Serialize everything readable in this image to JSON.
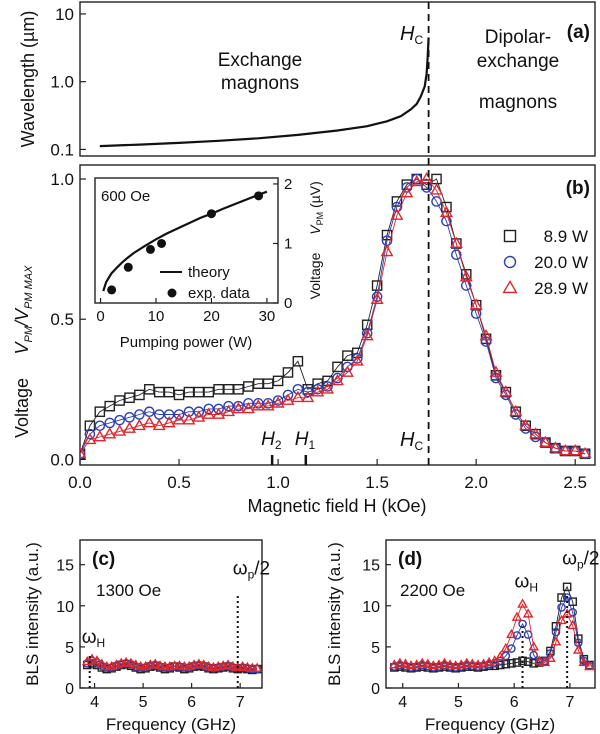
{
  "chart_data": [
    {
      "id": "a",
      "type": "line",
      "panel_label": "(a)",
      "ylabel": "Wavelength (µm)",
      "yscale": "log",
      "xlim": [
        0,
        2.6
      ],
      "ylim": [
        0.08,
        15
      ],
      "yticks": [
        {
          "v": 0.1,
          "label": "0.1"
        },
        {
          "v": 1,
          "label": "1.0"
        },
        {
          "v": 10,
          "label": "10"
        }
      ],
      "region_labels": [
        [
          "Exchange",
          "magnons"
        ],
        [
          "Dipolar-",
          "exchange",
          "magnons"
        ]
      ],
      "hc_label": "H",
      "hc_sub": "C",
      "hc_value": 1.76,
      "series": [
        {
          "x": [
            0.1,
            0.3,
            0.5,
            0.7,
            0.9,
            1.1,
            1.3,
            1.45,
            1.55,
            1.62,
            1.67,
            1.7,
            1.72,
            1.74,
            1.75,
            1.755,
            1.76
          ],
          "y": [
            0.112,
            0.118,
            0.125,
            0.134,
            0.146,
            0.164,
            0.19,
            0.22,
            0.26,
            0.31,
            0.39,
            0.47,
            0.6,
            0.85,
            1.3,
            2.2,
            4.5
          ]
        }
      ]
    },
    {
      "id": "b",
      "type": "scatter",
      "panel_label": "(b)",
      "ylabel_prefix": "Voltage",
      "ylabel_math": "V_PM/V_PM MAX",
      "xlabel": "Magnetic field H (kOe)",
      "xlim": [
        0,
        2.6
      ],
      "ylim": [
        -0.02,
        1.05
      ],
      "xticks": [
        "0.0",
        "0.5",
        "1.0",
        "1.5",
        "2.0",
        "2.5"
      ],
      "yticks": [
        "0.0",
        "0.5",
        "1.0"
      ],
      "field_markers": [
        {
          "x": 0.97,
          "label": "H",
          "sub": "2"
        },
        {
          "x": 1.14,
          "label": "H",
          "sub": "1"
        }
      ],
      "hc_label": "H",
      "hc_sub": "C",
      "series": [
        {
          "name": "8.9 W",
          "marker": "square",
          "color": "#222222",
          "x": [
            0.0,
            0.05,
            0.1,
            0.15,
            0.2,
            0.25,
            0.3,
            0.35,
            0.4,
            0.45,
            0.5,
            0.55,
            0.6,
            0.65,
            0.7,
            0.75,
            0.8,
            0.85,
            0.9,
            0.95,
            1.0,
            1.05,
            1.1,
            1.15,
            1.2,
            1.25,
            1.3,
            1.35,
            1.4,
            1.45,
            1.5,
            1.55,
            1.6,
            1.65,
            1.7,
            1.75,
            1.8,
            1.85,
            1.9,
            1.95,
            2.0,
            2.05,
            2.1,
            2.15,
            2.2,
            2.25,
            2.3,
            2.35,
            2.4,
            2.45,
            2.5,
            2.55
          ],
          "y": [
            0.02,
            0.12,
            0.17,
            0.19,
            0.21,
            0.22,
            0.23,
            0.25,
            0.24,
            0.24,
            0.23,
            0.24,
            0.24,
            0.24,
            0.25,
            0.25,
            0.25,
            0.26,
            0.27,
            0.27,
            0.28,
            0.31,
            0.35,
            0.25,
            0.27,
            0.28,
            0.33,
            0.37,
            0.38,
            0.48,
            0.62,
            0.8,
            0.92,
            0.98,
            1.0,
            0.98,
            1.0,
            0.9,
            0.77,
            0.66,
            0.55,
            0.43,
            0.3,
            0.24,
            0.17,
            0.12,
            0.09,
            0.06,
            0.04,
            0.03,
            0.03,
            0.02
          ]
        },
        {
          "name": "20.0 W",
          "marker": "circle",
          "color": "#2b3fb5",
          "x": [
            0.0,
            0.05,
            0.1,
            0.15,
            0.2,
            0.25,
            0.3,
            0.35,
            0.4,
            0.45,
            0.5,
            0.55,
            0.6,
            0.65,
            0.7,
            0.75,
            0.8,
            0.85,
            0.9,
            0.95,
            1.0,
            1.05,
            1.1,
            1.15,
            1.2,
            1.25,
            1.3,
            1.35,
            1.4,
            1.45,
            1.5,
            1.55,
            1.6,
            1.65,
            1.7,
            1.75,
            1.8,
            1.85,
            1.9,
            1.95,
            2.0,
            2.05,
            2.1,
            2.15,
            2.2,
            2.25,
            2.3,
            2.35,
            2.4,
            2.45,
            2.5,
            2.55
          ],
          "y": [
            0.02,
            0.09,
            0.12,
            0.13,
            0.14,
            0.15,
            0.16,
            0.17,
            0.16,
            0.16,
            0.16,
            0.17,
            0.17,
            0.18,
            0.18,
            0.19,
            0.19,
            0.2,
            0.2,
            0.2,
            0.21,
            0.23,
            0.25,
            0.24,
            0.25,
            0.26,
            0.29,
            0.33,
            0.36,
            0.45,
            0.58,
            0.78,
            0.9,
            0.97,
            1.0,
            0.97,
            0.92,
            0.85,
            0.73,
            0.62,
            0.52,
            0.42,
            0.29,
            0.23,
            0.16,
            0.11,
            0.08,
            0.06,
            0.04,
            0.03,
            0.03,
            0.02
          ]
        },
        {
          "name": "28.9 W",
          "marker": "triangle",
          "color": "#e0262c",
          "x": [
            0.0,
            0.05,
            0.1,
            0.15,
            0.2,
            0.25,
            0.3,
            0.35,
            0.4,
            0.45,
            0.5,
            0.55,
            0.6,
            0.65,
            0.7,
            0.75,
            0.8,
            0.85,
            0.9,
            0.95,
            1.0,
            1.05,
            1.1,
            1.15,
            1.2,
            1.25,
            1.3,
            1.35,
            1.4,
            1.45,
            1.5,
            1.55,
            1.6,
            1.65,
            1.7,
            1.75,
            1.8,
            1.85,
            1.9,
            1.95,
            2.0,
            2.05,
            2.1,
            2.15,
            2.2,
            2.25,
            2.3,
            2.35,
            2.4,
            2.45,
            2.5,
            2.55
          ],
          "y": [
            0.02,
            0.07,
            0.08,
            0.09,
            0.1,
            0.11,
            0.12,
            0.13,
            0.12,
            0.13,
            0.14,
            0.14,
            0.15,
            0.16,
            0.16,
            0.17,
            0.18,
            0.18,
            0.19,
            0.19,
            0.2,
            0.21,
            0.22,
            0.22,
            0.24,
            0.25,
            0.28,
            0.31,
            0.35,
            0.44,
            0.57,
            0.74,
            0.87,
            0.95,
            0.99,
            1.0,
            0.96,
            0.88,
            0.77,
            0.65,
            0.55,
            0.44,
            0.31,
            0.24,
            0.17,
            0.12,
            0.09,
            0.06,
            0.04,
            0.03,
            0.03,
            0.02
          ]
        }
      ],
      "inset": {
        "type": "scatter",
        "annotation": "600 Oe",
        "xlabel": "Pumping power (W)",
        "ylabel_prefix": "Voltage",
        "ylabel_math": "V_PM (µV)",
        "xlim": [
          -1,
          32
        ],
        "ylim": [
          0,
          2.1
        ],
        "xticks": [
          "0",
          "10",
          "20",
          "30"
        ],
        "yticks": [
          "0",
          "1",
          "2"
        ],
        "legend": [
          "theory",
          "exp. data"
        ],
        "theory_x": [
          0.5,
          1,
          2,
          3,
          4,
          5,
          6,
          8,
          10,
          12,
          15,
          18,
          20,
          22,
          25,
          28,
          30
        ],
        "theory_y": [
          0.2,
          0.35,
          0.5,
          0.6,
          0.69,
          0.77,
          0.84,
          0.96,
          1.07,
          1.17,
          1.3,
          1.43,
          1.5,
          1.58,
          1.69,
          1.8,
          1.87
        ],
        "exp_x": [
          2,
          5,
          9,
          11,
          20,
          28.5
        ],
        "exp_y": [
          0.22,
          0.6,
          0.9,
          1.0,
          1.5,
          1.8
        ]
      }
    },
    {
      "id": "c",
      "type": "line",
      "panel_label": "(c)",
      "annotation": "1300 Oe",
      "ylabel": "BLS intensity (a.u.)",
      "xlabel": "Frequency (GHz)",
      "xlim": [
        3.7,
        7.45
      ],
      "ylim": [
        0,
        18
      ],
      "xticks": [
        "4",
        "5",
        "6",
        "7"
      ],
      "yticks": [
        "0",
        "5",
        "10",
        "15"
      ],
      "omega_h": {
        "label": "ω",
        "sub": "H",
        "x": 3.9
      },
      "omega_p": {
        "label": "ω",
        "sub": "p",
        "suffix": "/2",
        "x": 6.95
      },
      "series": [
        {
          "name": "8.9 W",
          "marker": "square",
          "color": "#222222",
          "x": [
            3.85,
            3.95,
            4.05,
            4.15,
            4.25,
            4.35,
            4.45,
            4.55,
            4.65,
            4.75,
            4.85,
            4.95,
            5.05,
            5.15,
            5.25,
            5.35,
            5.45,
            5.55,
            5.65,
            5.75,
            5.85,
            5.95,
            6.05,
            6.15,
            6.25,
            6.35,
            6.45,
            6.55,
            6.65,
            6.75,
            6.85,
            6.95,
            7.05,
            7.15,
            7.25,
            7.35
          ],
          "y": [
            2.8,
            3.0,
            2.8,
            2.5,
            2.3,
            2.4,
            2.6,
            2.8,
            2.9,
            2.7,
            2.5,
            2.3,
            2.4,
            2.6,
            2.7,
            2.5,
            2.3,
            2.4,
            2.6,
            2.5,
            2.3,
            2.4,
            2.6,
            2.7,
            2.6,
            2.4,
            2.3,
            2.4,
            2.5,
            2.6,
            2.4,
            2.3,
            2.4,
            2.3,
            2.2,
            2.3
          ]
        },
        {
          "name": "20.0 W",
          "marker": "circle",
          "color": "#2b3fb5",
          "x": [
            3.85,
            3.95,
            4.05,
            4.15,
            4.25,
            4.35,
            4.45,
            4.55,
            4.65,
            4.75,
            4.85,
            4.95,
            5.05,
            5.15,
            5.25,
            5.35,
            5.45,
            5.55,
            5.65,
            5.75,
            5.85,
            5.95,
            6.05,
            6.15,
            6.25,
            6.35,
            6.45,
            6.55,
            6.65,
            6.75,
            6.85,
            6.95,
            7.05,
            7.15,
            7.25,
            7.35
          ],
          "y": [
            3.0,
            3.3,
            3.1,
            2.7,
            2.5,
            2.5,
            2.7,
            2.9,
            3.0,
            2.9,
            2.6,
            2.5,
            2.5,
            2.7,
            2.8,
            2.6,
            2.5,
            2.5,
            2.6,
            2.6,
            2.5,
            2.5,
            2.7,
            2.8,
            2.7,
            2.5,
            2.4,
            2.5,
            2.6,
            2.7,
            2.5,
            2.4,
            2.5,
            2.4,
            2.3,
            2.3
          ]
        },
        {
          "name": "28.9 W",
          "marker": "triangle",
          "color": "#e0262c",
          "x": [
            3.85,
            3.95,
            4.05,
            4.15,
            4.25,
            4.35,
            4.45,
            4.55,
            4.65,
            4.75,
            4.85,
            4.95,
            5.05,
            5.15,
            5.25,
            5.35,
            5.45,
            5.55,
            5.65,
            5.75,
            5.85,
            5.95,
            6.05,
            6.15,
            6.25,
            6.35,
            6.45,
            6.55,
            6.65,
            6.75,
            6.85,
            6.95,
            7.05,
            7.15,
            7.25,
            7.35
          ],
          "y": [
            3.2,
            3.5,
            3.3,
            2.9,
            2.6,
            2.6,
            2.8,
            3.0,
            3.1,
            3.0,
            2.8,
            2.6,
            2.6,
            2.8,
            2.9,
            2.7,
            2.6,
            2.6,
            2.7,
            2.7,
            2.6,
            2.6,
            2.8,
            2.9,
            2.8,
            2.6,
            2.5,
            2.6,
            2.7,
            2.8,
            2.6,
            2.5,
            2.6,
            2.5,
            2.4,
            2.4
          ]
        }
      ]
    },
    {
      "id": "d",
      "type": "line",
      "panel_label": "(d)",
      "annotation": "2200 Oe",
      "ylabel": "BLS intensity (a.u.)",
      "xlabel": "Frequency (GHz)",
      "xlim": [
        3.7,
        7.45
      ],
      "ylim": [
        0,
        18
      ],
      "xticks": [
        "4",
        "5",
        "6",
        "7"
      ],
      "yticks": [
        "0",
        "5",
        "10",
        "15"
      ],
      "omega_h": {
        "label": "ω",
        "sub": "H",
        "x": 6.15
      },
      "omega_p": {
        "label": "ω",
        "sub": "p",
        "suffix": "/2",
        "x": 6.95
      },
      "series": [
        {
          "name": "8.9 W",
          "marker": "square",
          "color": "#222222",
          "x": [
            3.85,
            3.95,
            4.05,
            4.15,
            4.25,
            4.35,
            4.45,
            4.55,
            4.65,
            4.75,
            4.85,
            4.95,
            5.05,
            5.15,
            5.25,
            5.35,
            5.45,
            5.55,
            5.65,
            5.75,
            5.85,
            5.95,
            6.05,
            6.15,
            6.25,
            6.35,
            6.45,
            6.55,
            6.65,
            6.75,
            6.85,
            6.95,
            7.05,
            7.15,
            7.25,
            7.35
          ],
          "y": [
            2.5,
            2.6,
            2.5,
            2.4,
            2.5,
            2.6,
            2.5,
            2.4,
            2.5,
            2.6,
            2.5,
            2.4,
            2.5,
            2.6,
            2.6,
            2.5,
            2.6,
            2.7,
            2.7,
            2.8,
            2.9,
            3.0,
            3.1,
            3.3,
            3.2,
            3.0,
            3.1,
            3.3,
            4.5,
            7.5,
            11.0,
            12.3,
            10.5,
            6.0,
            3.5,
            2.8
          ]
        },
        {
          "name": "20.0 W",
          "marker": "circle",
          "color": "#2b3fb5",
          "x": [
            3.85,
            3.95,
            4.05,
            4.15,
            4.25,
            4.35,
            4.45,
            4.55,
            4.65,
            4.75,
            4.85,
            4.95,
            5.05,
            5.15,
            5.25,
            5.35,
            5.45,
            5.55,
            5.65,
            5.75,
            5.85,
            5.95,
            6.05,
            6.15,
            6.25,
            6.35,
            6.45,
            6.55,
            6.65,
            6.75,
            6.85,
            6.95,
            7.05,
            7.15,
            7.25,
            7.35
          ],
          "y": [
            2.6,
            2.8,
            2.7,
            2.5,
            2.6,
            2.8,
            2.7,
            2.5,
            2.6,
            2.8,
            2.6,
            2.5,
            2.6,
            2.8,
            2.7,
            2.6,
            2.7,
            2.9,
            3.0,
            3.3,
            3.9,
            4.8,
            6.4,
            7.8,
            6.5,
            4.0,
            3.2,
            3.3,
            4.2,
            6.8,
            9.8,
            11.0,
            9.2,
            5.5,
            3.3,
            2.7
          ]
        },
        {
          "name": "28.9 W",
          "marker": "triangle",
          "color": "#e0262c",
          "x": [
            3.85,
            3.95,
            4.05,
            4.15,
            4.25,
            4.35,
            4.45,
            4.55,
            4.65,
            4.75,
            4.85,
            4.95,
            5.05,
            5.15,
            5.25,
            5.35,
            5.45,
            5.55,
            5.65,
            5.75,
            5.85,
            5.95,
            6.05,
            6.15,
            6.25,
            6.35,
            6.45,
            6.55,
            6.65,
            6.75,
            6.85,
            6.95,
            7.05,
            7.15,
            7.25,
            7.35
          ],
          "y": [
            2.8,
            3.0,
            2.9,
            2.7,
            2.8,
            3.0,
            2.9,
            2.7,
            2.8,
            3.0,
            2.8,
            2.7,
            2.8,
            3.0,
            2.9,
            2.8,
            2.9,
            3.1,
            3.3,
            3.8,
            4.8,
            6.5,
            8.6,
            10.2,
            9.0,
            5.0,
            3.3,
            3.1,
            3.6,
            5.6,
            8.2,
            9.0,
            7.6,
            4.6,
            3.1,
            2.6
          ]
        }
      ]
    }
  ]
}
